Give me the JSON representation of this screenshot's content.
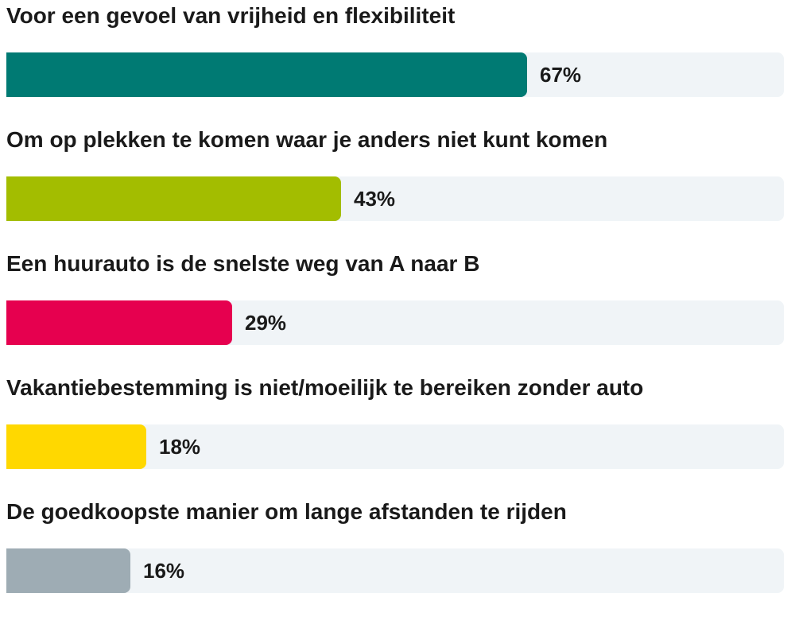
{
  "chart_data": {
    "type": "bar",
    "orientation": "horizontal",
    "title": "",
    "xlabel": "",
    "ylabel": "",
    "xlim": [
      0,
      100
    ],
    "grid": false,
    "legend": "none",
    "categories": [
      "Voor een gevoel van vrijheid en flexibiliteit",
      "Om op plekken te komen waar je anders niet kunt komen",
      "Een huurauto is de snelste weg van A naar B",
      "Vakantiebestemming is niet/moeilijk te bereiken zonder auto",
      "De goedkoopste manier om lange afstanden te rijden"
    ],
    "values": [
      67,
      43,
      29,
      18,
      16
    ],
    "value_labels": [
      "67%",
      "43%",
      "29%",
      "18%",
      "16%"
    ],
    "colors": [
      "#007a73",
      "#a3bd00",
      "#e6004f",
      "#ffd800",
      "#9eacb4"
    ],
    "track_color": "#f0f4f7"
  }
}
